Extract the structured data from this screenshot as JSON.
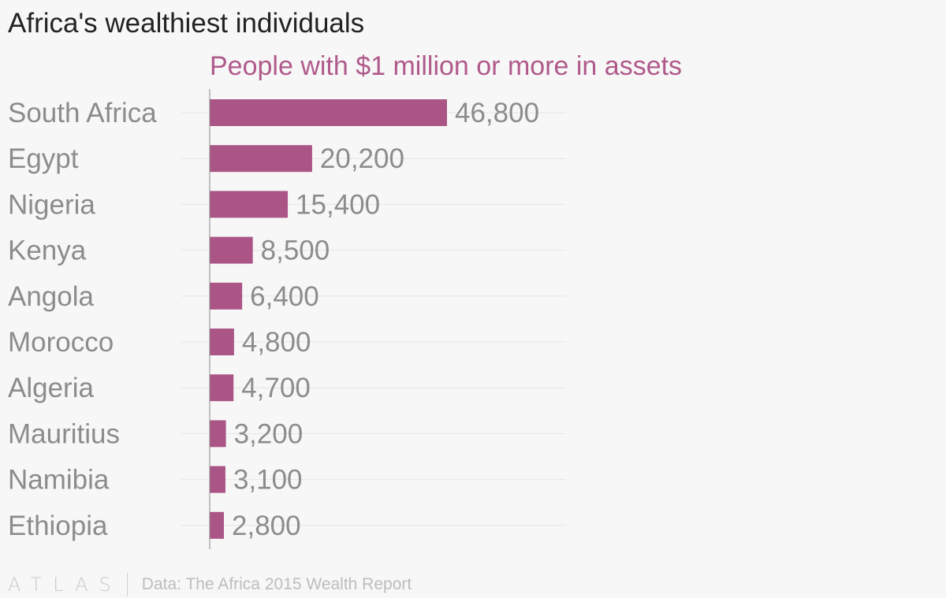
{
  "chart_data": {
    "type": "bar",
    "orientation": "horizontal",
    "title": "Africa's wealthiest individuals",
    "subtitle": "People with $1 million or more in assets",
    "categories": [
      "South Africa",
      "Egypt",
      "Nigeria",
      "Kenya",
      "Angola",
      "Morocco",
      "Algeria",
      "Mauritius",
      "Namibia",
      "Ethiopia"
    ],
    "values": [
      46800,
      20200,
      15400,
      8500,
      6400,
      4800,
      4700,
      3200,
      3100,
      2800
    ],
    "value_labels": [
      "46,800",
      "20,200",
      "15,400",
      "8,500",
      "6,400",
      "4,800",
      "4,700",
      "3,200",
      "3,100",
      "2,800"
    ],
    "xlim": [
      0,
      70000
    ],
    "grid": true,
    "colors": {
      "bar": "#aa5586",
      "subtitle": "#b05a8b",
      "category_label": "#8c8c8c",
      "value_label": "#8c8c8c",
      "grid": "#e6e6e6",
      "axis": "#8a8a8a"
    }
  },
  "footer": {
    "logo": "ATLAS",
    "source": "Data: The Africa 2015 Wealth Report"
  }
}
